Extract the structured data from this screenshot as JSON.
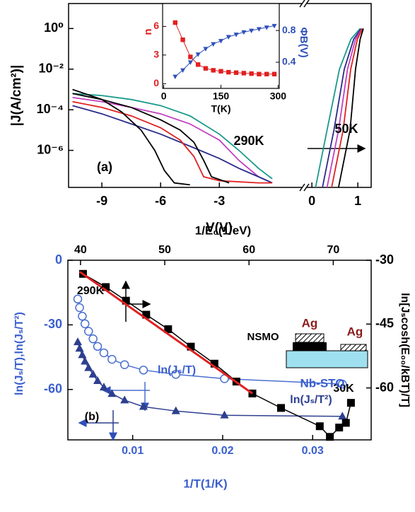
{
  "chart_data": [
    {
      "type": "line",
      "x_label": "V(V)",
      "y_label": "|J(A/cm²)|",
      "yscale": "log",
      "ylim": [
        1.5e-08,
        17
      ],
      "yticks": [
        {
          "value": 1,
          "label": "10⁰"
        },
        {
          "value": 0.01,
          "label": "10⁻²"
        },
        {
          "value": 0.0001,
          "label": "10⁻⁴"
        },
        {
          "value": 1e-06,
          "label": "10⁻⁶"
        }
      ],
      "segments": [
        {
          "xlim": [
            -10.7,
            1.25
          ],
          "xticks": [
            -9,
            -6,
            -3
          ]
        },
        {
          "xlim": [
            -0.11,
            1.29
          ],
          "xticks": [
            0,
            1
          ]
        }
      ],
      "annotations": [
        "290K",
        "50K",
        "(a)"
      ],
      "series": [
        {
          "segment": 0,
          "color": "#1a9a8a",
          "x": [
            -10.5,
            -9,
            -7.5,
            -6,
            -4.5,
            -3,
            -2,
            -1,
            -0.3
          ],
          "values": [
            0.00063,
            0.0005,
            0.00032,
            0.00016,
            5e-05,
            6.3e-06,
            1e-06,
            1.3e-07,
            4e-08
          ]
        },
        {
          "segment": 0,
          "color": "#c040c0",
          "x": [
            -10.5,
            -9,
            -7.5,
            -6,
            -4.5,
            -3,
            -2,
            -1,
            -0.3
          ],
          "values": [
            0.0004,
            0.00025,
            0.00013,
            6.3e-05,
            2e-05,
            3.2e-06,
            3.2e-07,
            5e-08,
            2.5e-08
          ]
        },
        {
          "segment": 0,
          "color": "#2a2a8a",
          "x": [
            -10.5,
            -9,
            -7.5,
            -6,
            -4.5,
            -3,
            -2,
            -1,
            -0.3
          ],
          "values": [
            0.00016,
            6.3e-05,
            2e-05,
            6.3e-06,
            1.6e-06,
            4e-07,
            1.3e-07,
            5e-08,
            2.5e-08
          ]
        },
        {
          "segment": 0,
          "color": "#e02020",
          "x": [
            -10.5,
            -9,
            -7.5,
            -6,
            -5,
            -4.3,
            -3.8,
            -3,
            -1,
            -0.3
          ],
          "values": [
            0.00025,
            0.00013,
            5e-05,
            1.3e-05,
            3.2e-06,
            5e-07,
            5e-08,
            3.2e-08,
            2.5e-08,
            2.5e-08
          ]
        },
        {
          "segment": 0,
          "color": "#000000",
          "x": [
            -10.5,
            -9,
            -8,
            -7,
            -6.3,
            -5.8,
            -5.3,
            -4.5
          ],
          "values": [
            0.001,
            0.00032,
            7.9e-05,
            1e-05,
            1e-06,
            1e-07,
            2.5e-08,
            2e-08
          ]
        },
        {
          "segment": 0,
          "color": "#000000",
          "x": [
            -10.5,
            -9,
            -7.5,
            -6,
            -5,
            -4.3,
            -3.8,
            -3.4,
            -2.5
          ],
          "values": [
            0.00063,
            0.00032,
            0.00013,
            3.2e-05,
            1e-05,
            2.5e-06,
            3.2e-07,
            5e-08,
            2.5e-08
          ]
        },
        {
          "segment": 1,
          "color": "#1a9a8a",
          "x": [
            0.08,
            0.33,
            0.6,
            0.85,
            1.05
          ],
          "values": [
            1.5e-08,
            1e-05,
            0.01,
            0.3,
            1
          ]
        },
        {
          "segment": 1,
          "color": "#2a2a8a",
          "x": [
            0.23,
            0.48,
            0.705,
            0.91,
            1.07
          ],
          "values": [
            1.5e-08,
            1e-05,
            0.01,
            0.3,
            1
          ]
        },
        {
          "segment": 1,
          "color": "#c040c0",
          "x": [
            0.33,
            0.58,
            0.775,
            0.95,
            1.09
          ],
          "values": [
            1.5e-08,
            1e-05,
            0.01,
            0.3,
            1
          ]
        },
        {
          "segment": 1,
          "color": "#e02020",
          "x": [
            0.43,
            0.68,
            0.845,
            0.99,
            1.1
          ],
          "values": [
            1.5e-08,
            1e-05,
            0.01,
            0.3,
            1
          ]
        },
        {
          "segment": 1,
          "color": "#000000",
          "x": [
            0.58,
            0.83,
            0.95,
            1.05,
            1.12
          ],
          "values": [
            1.5e-08,
            1e-05,
            0.01,
            0.3,
            1
          ]
        }
      ]
    },
    {
      "type": "line",
      "x_label": "T(K)",
      "y_label": "n",
      "y2_label": "ΦB(V)",
      "xlim": [
        -3,
        303
      ],
      "xticks": [
        0,
        150,
        300
      ],
      "ylim": [
        -0.5,
        8.4
      ],
      "yticks": [
        0,
        3,
        6
      ],
      "y2lim": [
        0.07,
        1.14
      ],
      "y2ticks": [
        0.4,
        0.8
      ],
      "series": [
        {
          "color": "#e02020",
          "marker": "square",
          "x": [
            30,
            50,
            70,
            90,
            110,
            130,
            150,
            170,
            190,
            210,
            230,
            250,
            270,
            290
          ],
          "values": [
            6.4,
            4.6,
            2.8,
            2.0,
            1.6,
            1.4,
            1.3,
            1.2,
            1.15,
            1.1,
            1.05,
            1.0,
            1.0,
            1.0
          ]
        },
        {
          "color": "#2f4fb8",
          "marker": "triangle-down",
          "axis": "y2",
          "x": [
            30,
            50,
            70,
            90,
            110,
            130,
            150,
            170,
            190,
            210,
            230,
            250,
            270,
            290
          ],
          "values": [
            0.22,
            0.3,
            0.4,
            0.5,
            0.57,
            0.63,
            0.67,
            0.72,
            0.75,
            0.78,
            0.8,
            0.82,
            0.84,
            0.86
          ]
        }
      ]
    },
    {
      "type": "line",
      "x_label": "1/T(1/K)",
      "x2_label": "1/E₀(1/eV)",
      "y_label": "ln(Jₛ/T),ln(Jₛ/T²)",
      "y2_label": "ln[Jₛcosh(E₀₀/kBT)/T]",
      "xlim": [
        0.0028,
        0.0365
      ],
      "xticks": [
        0.01,
        0.02,
        0.03
      ],
      "x2lim": [
        38.5,
        74.5
      ],
      "x2ticks": [
        40,
        50,
        60,
        70
      ],
      "ylim": [
        -83.4,
        0
      ],
      "yticks": [
        0,
        -30,
        -60
      ],
      "y2lim": [
        -72.2,
        -30
      ],
      "y2ticks": [
        -30,
        -45,
        -60
      ],
      "annotations": [
        "290K",
        "30K",
        "(b)",
        "ln(Jₛ/T)",
        "ln(Jₛ/T²)",
        "NSMO",
        "Ag",
        "Ag",
        "Nb-STO"
      ],
      "series": [
        {
          "color": "#4a6fd0",
          "marker": "circle-open",
          "x": [
            0.0039,
            0.0041,
            0.0044,
            0.0047,
            0.0051,
            0.0056,
            0.0061,
            0.0068,
            0.0077,
            0.0091,
            0.0112,
            0.0148,
            0.0202,
            0.0333
          ],
          "values": [
            -18,
            -22,
            -26,
            -29.5,
            -33,
            -36.5,
            -40,
            -43,
            -46,
            -48.5,
            -51,
            -53,
            -55,
            -57.5
          ]
        },
        {
          "color": "#2e3f8f",
          "marker": "triangle-up",
          "x": [
            0.0039,
            0.0041,
            0.0044,
            0.0047,
            0.0051,
            0.0056,
            0.0061,
            0.0068,
            0.0077,
            0.0091,
            0.0112,
            0.0148,
            0.0202,
            0.0333
          ],
          "values": [
            -38,
            -41,
            -44,
            -47,
            -50,
            -53,
            -56,
            -59,
            -62,
            -65,
            -68,
            -70,
            -72,
            -72.5
          ]
        },
        {
          "color": "#000000",
          "marker": "square",
          "xaxis": "x2",
          "axis": "y2",
          "x": [
            40.3,
            43.0,
            45.4,
            47.8,
            50.4,
            53.1,
            55.9,
            58.5,
            60.4,
            63.8,
            68.4,
            69.6,
            70.7,
            71.5,
            72.1
          ],
          "values": [
            -33.2,
            -36.3,
            -39.5,
            -42.8,
            -46.2,
            -50.3,
            -54.3,
            -58.5,
            -61.3,
            -64.7,
            -69.0,
            -71.5,
            -69.3,
            -68.2,
            -63.5
          ]
        },
        {
          "color": "#e02020",
          "xaxis": "x2",
          "axis": "y2",
          "x": [
            39.9,
            60.4
          ],
          "values": [
            -32.7,
            -61.3
          ]
        }
      ]
    }
  ]
}
